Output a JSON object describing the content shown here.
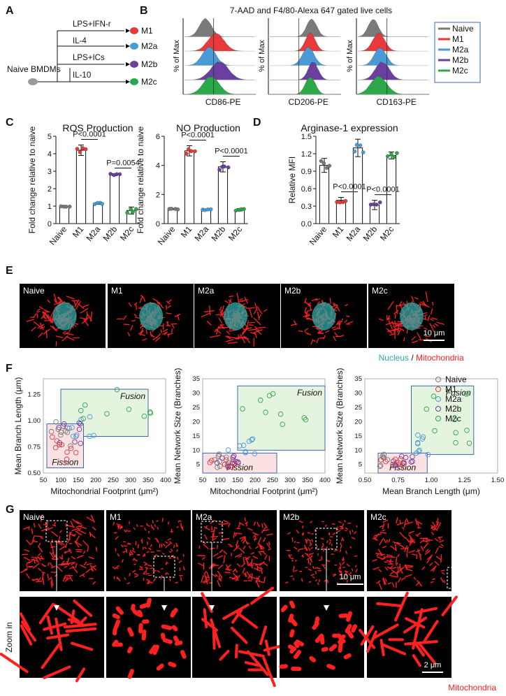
{
  "colors": {
    "naive": "#7a7a7a",
    "m1": "#e8393b",
    "m2a": "#4a9ad6",
    "m2b": "#6a3fa0",
    "m2c": "#2aa84a",
    "mito": "#ff2020",
    "nucleus": "#2fa9a8",
    "box_border": "#3b67b0"
  },
  "panel_letters": [
    "A",
    "B",
    "C",
    "D",
    "E",
    "F",
    "G"
  ],
  "panelA": {
    "source": "Naive BMDMs",
    "treatments": [
      "LPS+IFN-r",
      "IL-4",
      "LPS+ICs",
      "IL-10"
    ],
    "outcomes": [
      "M1",
      "M2a",
      "M2b",
      "M2c"
    ]
  },
  "panelB": {
    "title": "7-AAD and F4/80-Alexa 647 gated live cells",
    "ylabel": "% of Max",
    "xlabels": [
      "CD86-PE",
      "CD206-PE",
      "CD163-PE"
    ],
    "legend": [
      "Naive",
      "M1",
      "M2a",
      "M2b",
      "M2c"
    ]
  },
  "chart_data": [
    {
      "type": "bar",
      "title": "ROS Production",
      "ylabel": "Fold change relative to naive",
      "categories": [
        "Naive",
        "M1",
        "M2a",
        "M2b",
        "M2c"
      ],
      "values": [
        1.0,
        4.2,
        1.15,
        2.8,
        0.75
      ],
      "errors": [
        0.04,
        0.3,
        0.05,
        0.06,
        0.2
      ],
      "ylim": [
        0,
        5
      ],
      "yticks": [
        "0",
        "1",
        "2",
        "3",
        "4",
        "5"
      ],
      "annotations": [
        "P<0.0001",
        "P=0.0054"
      ]
    },
    {
      "type": "bar",
      "title": "NO Production",
      "ylabel": "Fold change relative to naive",
      "categories": [
        "Naive",
        "M1",
        "M2a",
        "M2b",
        "M2c"
      ],
      "values": [
        1.0,
        5.0,
        0.95,
        3.9,
        0.95
      ],
      "errors": [
        0.04,
        0.35,
        0.04,
        0.35,
        0.08
      ],
      "ylim": [
        0,
        6
      ],
      "yticks": [
        "0",
        "2",
        "4",
        "6"
      ],
      "annotations": [
        "P<0.0001",
        "P<0.0001"
      ]
    },
    {
      "type": "bar",
      "title": "Arginase-1 expression",
      "ylabel": "Relative MFI",
      "categories": [
        "Naive",
        "M1",
        "M2a",
        "M2b",
        "M2c"
      ],
      "values": [
        1.0,
        0.4,
        1.3,
        0.32,
        1.17
      ],
      "errors": [
        0.12,
        0.05,
        0.15,
        0.08,
        0.06
      ],
      "ylim": [
        0,
        1.5
      ],
      "yticks": [
        "0.0",
        "0.3",
        "0.6",
        "0.9",
        "1.2",
        "1.5"
      ],
      "annotations": [
        "P<0.0001",
        "P<0.0001"
      ]
    },
    {
      "type": "scatter",
      "xlabel": "Mitochondrial Footprint (μm²)",
      "ylabel": "Mean Branch Length (μm)",
      "xlim": [
        50,
        400
      ],
      "ylim": [
        0.5,
        1.4
      ],
      "xticks": [
        "50",
        "100",
        "150",
        "200",
        "250",
        "300",
        "350",
        "400"
      ],
      "yticks": [
        "0.50",
        "0.75",
        "1.00",
        "1.25"
      ],
      "boxes": [
        "Fusion",
        "Fission"
      ]
    },
    {
      "type": "scatter",
      "xlabel": "Mitochondrial Footprint (μm²)",
      "ylabel": "Mean Network Size (Branches)",
      "xlim": [
        50,
        400
      ],
      "ylim": [
        2,
        35
      ],
      "xticks": [
        "50",
        "100",
        "150",
        "200",
        "250",
        "300",
        "350",
        "400"
      ],
      "yticks": [
        "5",
        "10",
        "15",
        "20",
        "25",
        "30",
        "35"
      ],
      "boxes": [
        "Fusion",
        "Fission"
      ]
    },
    {
      "type": "scatter",
      "xlabel": "Mean Branch Length (μm)",
      "ylabel": "Mean Network Size (Branches)",
      "xlim": [
        0.5,
        1.5
      ],
      "ylim": [
        2,
        35
      ],
      "xticks": [
        "0.50",
        "0.75",
        "1.00",
        "1.25",
        "1.50"
      ],
      "yticks": [
        "5",
        "10",
        "15",
        "20",
        "25",
        "30",
        "35"
      ],
      "boxes": [
        "Fusion",
        "Fission"
      ],
      "legend": [
        "Naive",
        "M1",
        "M2a",
        "M2b",
        "M2c"
      ]
    }
  ],
  "panelE": {
    "labels": [
      "Naive",
      "M1",
      "M2a",
      "M2b",
      "M2c"
    ],
    "scale": "10 μm",
    "caption_nucleus": "Nucleus",
    "caption_sep": "/",
    "caption_mito": "Mitochondria"
  },
  "panelG": {
    "labels": [
      "Naive",
      "M1",
      "M2a",
      "M2b",
      "M2c"
    ],
    "scale_top": "10 μm",
    "scale_bottom": "2 μm",
    "zoom": "Zoom in",
    "caption": "Mitochondria"
  }
}
